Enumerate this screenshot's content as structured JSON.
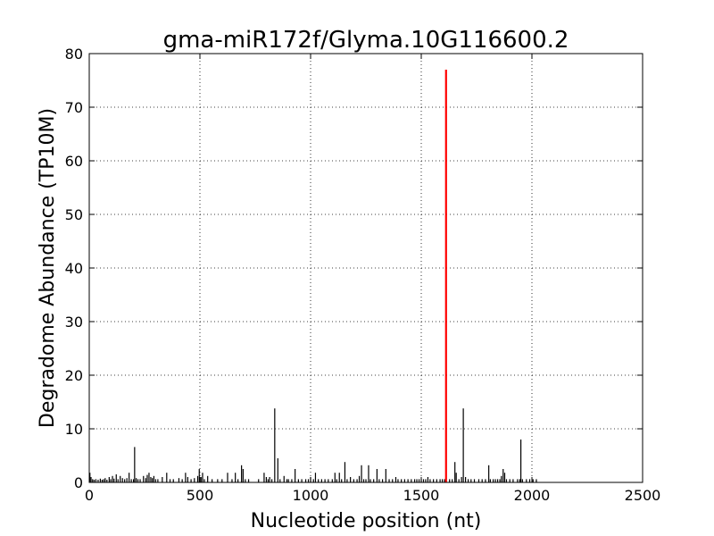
{
  "chart_data": {
    "type": "bar",
    "title": "gma-miR172f/Glyma.10G116600.2",
    "xlabel": "Nucleotide position (nt)",
    "ylabel": "Degradome Abundance (TP10M)",
    "xlim": [
      0,
      2500
    ],
    "ylim": [
      0,
      80
    ],
    "xticks": [
      0,
      500,
      1000,
      1500,
      2000,
      2500
    ],
    "yticks": [
      0,
      10,
      20,
      30,
      40,
      50,
      60,
      70,
      80
    ],
    "grid": true,
    "colors": {
      "background": "#300a6e",
      "bars": "#000000",
      "highlight": "#ff0000",
      "axes": "#000000"
    },
    "highlight": {
      "x": 1612,
      "y": 77
    },
    "series": [
      {
        "points": [
          [
            3,
            1.8
          ],
          [
            8,
            1.0
          ],
          [
            15,
            0.6
          ],
          [
            22,
            0.5
          ],
          [
            30,
            0.6
          ],
          [
            40,
            0.5
          ],
          [
            50,
            0.7
          ],
          [
            58,
            0.5
          ],
          [
            65,
            0.6
          ],
          [
            72,
            0.8
          ],
          [
            80,
            0.5
          ],
          [
            90,
            1.0
          ],
          [
            97,
            0.6
          ],
          [
            105,
            1.2
          ],
          [
            112,
            0.7
          ],
          [
            122,
            1.5
          ],
          [
            130,
            0.6
          ],
          [
            140,
            1.2
          ],
          [
            150,
            0.8
          ],
          [
            160,
            0.6
          ],
          [
            170,
            0.8
          ],
          [
            180,
            1.8
          ],
          [
            190,
            0.6
          ],
          [
            200,
            0.6
          ],
          [
            205,
            6.6
          ],
          [
            212,
            0.8
          ],
          [
            220,
            0.6
          ],
          [
            230,
            0.6
          ],
          [
            245,
            1.2
          ],
          [
            255,
            0.8
          ],
          [
            262,
            1.4
          ],
          [
            270,
            1.8
          ],
          [
            278,
            1.0
          ],
          [
            285,
            0.8
          ],
          [
            292,
            1.2
          ],
          [
            300,
            0.6
          ],
          [
            310,
            0.6
          ],
          [
            330,
            1.0
          ],
          [
            350,
            1.8
          ],
          [
            365,
            0.6
          ],
          [
            380,
            0.6
          ],
          [
            405,
            0.8
          ],
          [
            420,
            0.6
          ],
          [
            435,
            1.8
          ],
          [
            445,
            1.0
          ],
          [
            460,
            0.6
          ],
          [
            475,
            0.8
          ],
          [
            490,
            1.2
          ],
          [
            497,
            2.5
          ],
          [
            505,
            1.0
          ],
          [
            512,
            1.8
          ],
          [
            520,
            0.6
          ],
          [
            535,
            1.2
          ],
          [
            555,
            0.6
          ],
          [
            580,
            0.6
          ],
          [
            600,
            0.6
          ],
          [
            625,
            1.8
          ],
          [
            645,
            0.6
          ],
          [
            660,
            1.8
          ],
          [
            672,
            0.6
          ],
          [
            688,
            3.2
          ],
          [
            695,
            2.5
          ],
          [
            705,
            0.6
          ],
          [
            720,
            0.6
          ],
          [
            765,
            0.6
          ],
          [
            790,
            1.8
          ],
          [
            800,
            1.0
          ],
          [
            808,
            0.6
          ],
          [
            815,
            1.0
          ],
          [
            825,
            0.6
          ],
          [
            838,
            13.8
          ],
          [
            852,
            4.5
          ],
          [
            862,
            0.6
          ],
          [
            880,
            1.2
          ],
          [
            893,
            0.6
          ],
          [
            900,
            0.6
          ],
          [
            915,
            0.6
          ],
          [
            930,
            2.5
          ],
          [
            945,
            0.6
          ],
          [
            960,
            0.6
          ],
          [
            978,
            0.6
          ],
          [
            990,
            0.6
          ],
          [
            1000,
            1.0
          ],
          [
            1013,
            0.6
          ],
          [
            1022,
            1.8
          ],
          [
            1035,
            0.6
          ],
          [
            1050,
            0.6
          ],
          [
            1065,
            0.6
          ],
          [
            1080,
            0.6
          ],
          [
            1098,
            0.6
          ],
          [
            1110,
            1.8
          ],
          [
            1118,
            0.6
          ],
          [
            1130,
            1.8
          ],
          [
            1140,
            0.6
          ],
          [
            1155,
            3.8
          ],
          [
            1165,
            0.6
          ],
          [
            1180,
            1.0
          ],
          [
            1195,
            0.6
          ],
          [
            1210,
            0.6
          ],
          [
            1220,
            1.2
          ],
          [
            1230,
            3.2
          ],
          [
            1240,
            0.6
          ],
          [
            1250,
            0.6
          ],
          [
            1262,
            3.2
          ],
          [
            1270,
            0.6
          ],
          [
            1285,
            0.6
          ],
          [
            1300,
            2.5
          ],
          [
            1310,
            0.6
          ],
          [
            1325,
            0.6
          ],
          [
            1340,
            2.5
          ],
          [
            1355,
            0.6
          ],
          [
            1370,
            0.6
          ],
          [
            1385,
            1.0
          ],
          [
            1395,
            0.6
          ],
          [
            1410,
            0.6
          ],
          [
            1425,
            0.6
          ],
          [
            1440,
            0.6
          ],
          [
            1455,
            0.6
          ],
          [
            1470,
            0.6
          ],
          [
            1480,
            0.6
          ],
          [
            1490,
            0.6
          ],
          [
            1500,
            0.6
          ],
          [
            1510,
            0.6
          ],
          [
            1520,
            0.6
          ],
          [
            1530,
            1.0
          ],
          [
            1540,
            0.6
          ],
          [
            1555,
            0.6
          ],
          [
            1570,
            0.6
          ],
          [
            1585,
            0.6
          ],
          [
            1595,
            0.6
          ],
          [
            1605,
            0.6
          ],
          [
            1628,
            0.6
          ],
          [
            1640,
            0.6
          ],
          [
            1652,
            3.8
          ],
          [
            1658,
            1.8
          ],
          [
            1670,
            0.6
          ],
          [
            1682,
            1.0
          ],
          [
            1690,
            13.8
          ],
          [
            1700,
            1.0
          ],
          [
            1712,
            0.6
          ],
          [
            1725,
            0.6
          ],
          [
            1740,
            0.6
          ],
          [
            1760,
            0.6
          ],
          [
            1775,
            0.6
          ],
          [
            1790,
            0.6
          ],
          [
            1805,
            3.2
          ],
          [
            1812,
            0.6
          ],
          [
            1825,
            0.6
          ],
          [
            1835,
            0.6
          ],
          [
            1845,
            0.6
          ],
          [
            1855,
            0.6
          ],
          [
            1862,
            1.2
          ],
          [
            1870,
            2.5
          ],
          [
            1877,
            1.8
          ],
          [
            1885,
            0.6
          ],
          [
            1900,
            0.6
          ],
          [
            1915,
            0.6
          ],
          [
            1935,
            0.6
          ],
          [
            1945,
            0.6
          ],
          [
            1950,
            8.0
          ],
          [
            1957,
            0.6
          ],
          [
            1975,
            0.6
          ],
          [
            1990,
            0.6
          ],
          [
            2005,
            0.6
          ],
          [
            2020,
            0.6
          ]
        ]
      }
    ]
  }
}
